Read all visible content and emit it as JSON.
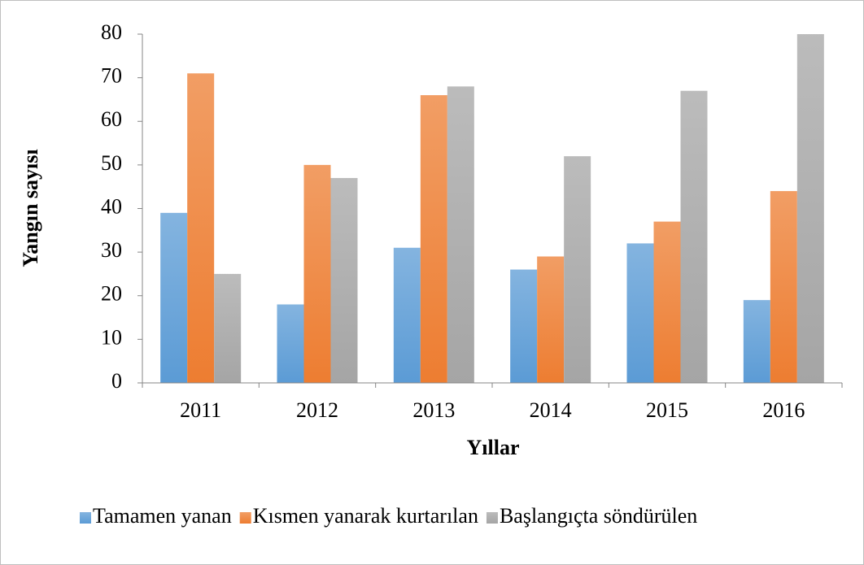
{
  "chart_data": {
    "type": "bar",
    "categories": [
      "2011",
      "2012",
      "2013",
      "2014",
      "2015",
      "2016"
    ],
    "series": [
      {
        "name": "Tamamen yanan",
        "color": "#5b9bd5",
        "values": [
          39,
          18,
          31,
          26,
          32,
          19
        ]
      },
      {
        "name": "Kısmen yanarak kurtarılan",
        "color": "#ed7d31",
        "values": [
          71,
          50,
          66,
          29,
          37,
          44
        ]
      },
      {
        "name": "Başlangıçta söndürülen",
        "color": "#a5a5a5",
        "values": [
          25,
          47,
          68,
          52,
          67,
          80
        ]
      }
    ],
    "x_label": "Yıllar",
    "y_label": "Yangın sayısı",
    "ylim": [
      0,
      80
    ],
    "yticks": [
      0,
      10,
      20,
      30,
      40,
      50,
      60,
      70,
      80
    ],
    "grid": false,
    "legend": "bottom"
  }
}
